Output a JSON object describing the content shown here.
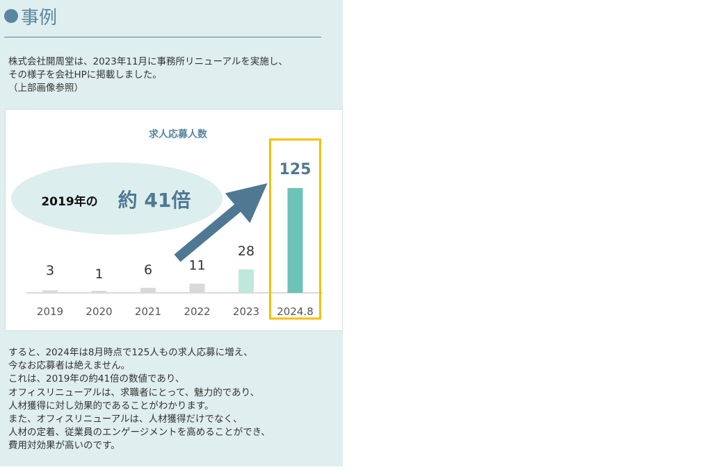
{
  "section": {
    "title": "事例"
  },
  "intro_lines": [
    "株式会社開周堂は、2023年11月に事務所リニューアルを実施し、",
    "その様子を会社HPに掲載しました。",
    "（上部画像参照）"
  ],
  "chart_data": {
    "type": "bar",
    "title": "求人応募人数",
    "categories": [
      "2019",
      "2020",
      "2021",
      "2022",
      "2023",
      "2024.8"
    ],
    "values": [
      3,
      1,
      6,
      11,
      28,
      125
    ],
    "value_labels": [
      "3",
      "1",
      "6",
      "11",
      "28",
      "125"
    ],
    "bar_colors": [
      "#d9d9d9",
      "#d9d9d9",
      "#d9d9d9",
      "#d9d9d9",
      "#bfe8dc",
      "#6cc3b7"
    ],
    "highlight_category": "2024.8",
    "highlight_color": "#f2c200",
    "callout": {
      "prefix": "2019年の",
      "value": "約 41倍"
    },
    "arrow_color": "#4f7893",
    "xlabel": "",
    "ylabel": "",
    "grid": false,
    "legend": "none"
  },
  "outro_lines": [
    "すると、2024年は8月時点で125人もの求人応募に増え、",
    "今なお応募者は絶えません。",
    "これは、2019年の約41倍の数値であり、",
    "オフィスリニューアルは、求職者にとって、魅力的であり、",
    "人材獲得に対し効果的であることがわかります。",
    "また、オフィスリニューアルは、人材獲得だけでなく、",
    "人材の定着、従業員のエンゲージメントを高めることができ、",
    "費用対効果が高いのです。"
  ]
}
